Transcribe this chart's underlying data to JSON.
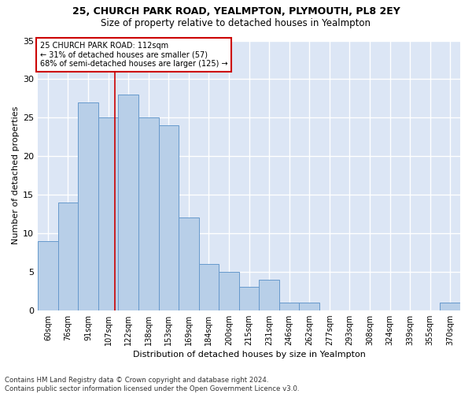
{
  "title": "25, CHURCH PARK ROAD, YEALMPTON, PLYMOUTH, PL8 2EY",
  "subtitle": "Size of property relative to detached houses in Yealmpton",
  "xlabel": "Distribution of detached houses by size in Yealmpton",
  "ylabel": "Number of detached properties",
  "bar_labels": [
    "60sqm",
    "76sqm",
    "91sqm",
    "107sqm",
    "122sqm",
    "138sqm",
    "153sqm",
    "169sqm",
    "184sqm",
    "200sqm",
    "215sqm",
    "231sqm",
    "246sqm",
    "262sqm",
    "277sqm",
    "293sqm",
    "308sqm",
    "324sqm",
    "339sqm",
    "355sqm",
    "370sqm"
  ],
  "bar_values": [
    9,
    14,
    27,
    25,
    28,
    25,
    24,
    12,
    6,
    5,
    3,
    4,
    1,
    1,
    0,
    0,
    0,
    0,
    0,
    0,
    1
  ],
  "bar_color": "#b8cfe8",
  "bar_edge_color": "#6699cc",
  "background_color": "#dce6f5",
  "grid_color": "#ffffff",
  "annotation_text_line1": "25 CHURCH PARK ROAD: 112sqm",
  "annotation_text_line2": "← 31% of detached houses are smaller (57)",
  "annotation_text_line3": "68% of semi-detached houses are larger (125) →",
  "annotation_box_facecolor": "#ffffff",
  "annotation_border_color": "#cc0000",
  "red_line_color": "#cc0000",
  "ylim": [
    0,
    35
  ],
  "yticks": [
    0,
    5,
    10,
    15,
    20,
    25,
    30,
    35
  ],
  "footer_line1": "Contains HM Land Registry data © Crown copyright and database right 2024.",
  "footer_line2": "Contains public sector information licensed under the Open Government Licence v3.0."
}
